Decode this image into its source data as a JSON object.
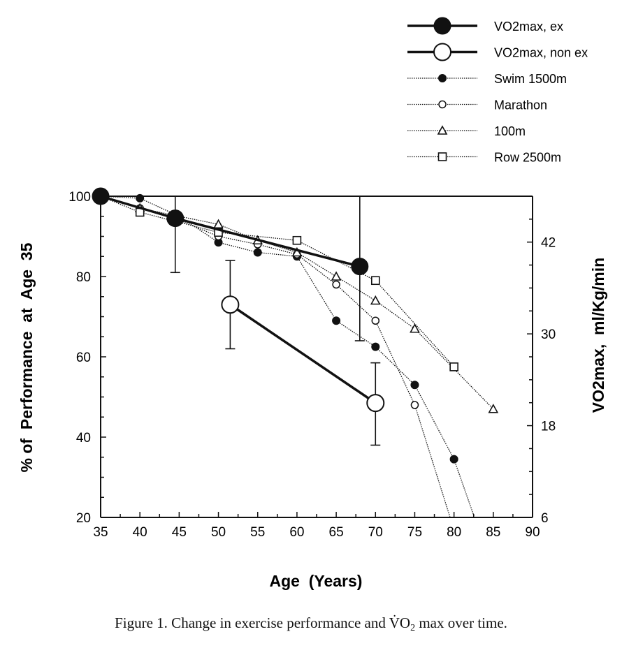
{
  "chart_data": {
    "type": "line",
    "title": "",
    "xlabel": "Age  (Years)",
    "ylabel": "% of  Performance  at  Age  35",
    "y2label": "VO2max,  ml/Kg/min",
    "xlim": [
      35,
      90
    ],
    "ylim": [
      20,
      100
    ],
    "y2lim": [
      6,
      48
    ],
    "x_ticks": [
      "35",
      "40",
      "45",
      "50",
      "55",
      "60",
      "65",
      "70",
      "75",
      "80",
      "85",
      "90"
    ],
    "y_ticks": [
      "20",
      "40",
      "60",
      "80",
      "100"
    ],
    "y2_ticks": [
      "6",
      "18",
      "30",
      "42"
    ],
    "grid": false,
    "legend_position": "top-right",
    "series": [
      {
        "name": "VO2max, ex",
        "style": "thick-filled-circle",
        "points": [
          [
            35,
            100
          ],
          [
            44.5,
            94.5
          ],
          [
            68,
            82.5
          ]
        ],
        "error_bars": [
          null,
          [
            81,
            100
          ],
          [
            64,
            100
          ]
        ]
      },
      {
        "name": "VO2max, non ex",
        "style": "thick-open-circle",
        "points": [
          [
            51.5,
            73
          ],
          [
            70,
            48.5
          ]
        ],
        "error_bars": [
          [
            62,
            84
          ],
          [
            38,
            58.5
          ]
        ]
      },
      {
        "name": "Swim 1500m",
        "style": "dotted-filled-circle",
        "points": [
          [
            35,
            100
          ],
          [
            40,
            99.5
          ],
          [
            45,
            95
          ],
          [
            50,
            88.5
          ],
          [
            55,
            86
          ],
          [
            60,
            85
          ],
          [
            65,
            69
          ],
          [
            70,
            62.5
          ],
          [
            75,
            53
          ],
          [
            80,
            34.5
          ],
          [
            82.6,
            20
          ]
        ]
      },
      {
        "name": "Marathon",
        "style": "dotted-open-circle",
        "points": [
          [
            35,
            100
          ],
          [
            40,
            97
          ],
          [
            45,
            94
          ],
          [
            50,
            90
          ],
          [
            55,
            88
          ],
          [
            60,
            85.5
          ],
          [
            65,
            78
          ],
          [
            70,
            69
          ],
          [
            75,
            48
          ],
          [
            79.5,
            20
          ]
        ]
      },
      {
        "name": "100m",
        "style": "dotted-open-triangle",
        "points": [
          [
            35,
            100
          ],
          [
            40,
            97
          ],
          [
            45,
            95
          ],
          [
            50,
            93
          ],
          [
            55,
            89
          ],
          [
            60,
            86
          ],
          [
            65,
            80
          ],
          [
            70,
            74
          ],
          [
            75,
            67
          ],
          [
            85,
            47
          ]
        ]
      },
      {
        "name": "Row 2500m",
        "style": "dotted-open-square",
        "points": [
          [
            35,
            100
          ],
          [
            40,
            96
          ],
          [
            50,
            91
          ],
          [
            60,
            89
          ],
          [
            70,
            79
          ],
          [
            80,
            57.5
          ]
        ]
      }
    ],
    "caption_before": "Figure 1. Change in exercise performance and ",
    "caption_symbol": "V̇O",
    "caption_sub": "2",
    "caption_after": " max over time."
  }
}
